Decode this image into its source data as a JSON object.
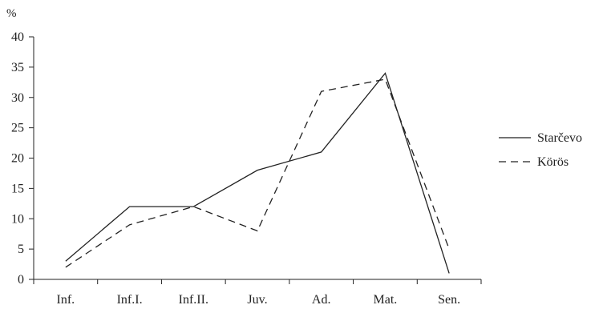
{
  "chart_data": {
    "type": "line",
    "categories": [
      "Inf.",
      "Inf.I.",
      "Inf.II.",
      "Juv.",
      "Ad.",
      "Mat.",
      "Sen."
    ],
    "series": [
      {
        "name": "Starčevo",
        "values": [
          3,
          12,
          12,
          18,
          21,
          34,
          1
        ],
        "style": "solid"
      },
      {
        "name": "Körös",
        "values": [
          2,
          9,
          12,
          8,
          31,
          33,
          5
        ],
        "style": "dashed"
      }
    ],
    "y_ticks": [
      "0",
      "5",
      "10",
      "15",
      "20",
      "25",
      "30",
      "35",
      "40"
    ],
    "ylim": [
      0,
      40
    ],
    "y_unit": "%",
    "title": "",
    "xlabel": "",
    "ylabel": "",
    "legend_position": "right",
    "grid": false,
    "line_color": "#222222"
  }
}
